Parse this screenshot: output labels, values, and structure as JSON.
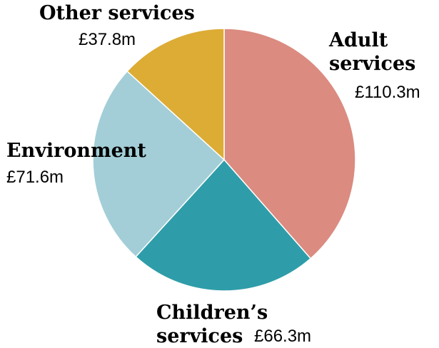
{
  "chart_data": {
    "type": "pie",
    "unit": "£m",
    "slices": [
      {
        "name": "Adult services",
        "label_lines": [
          "Adult",
          "services"
        ],
        "value": 110.3,
        "value_label": "£110.3m",
        "color": "#db8b80"
      },
      {
        "name": "Children’s services",
        "label_lines": [
          "Children’s",
          "services"
        ],
        "value": 66.3,
        "value_label": "£66.3m",
        "color": "#2e9da9"
      },
      {
        "name": "Environment",
        "label_lines": [
          "Environment"
        ],
        "value": 71.6,
        "value_label": "£71.6m",
        "color": "#a3ced7"
      },
      {
        "name": "Other services",
        "label_lines": [
          "Other services"
        ],
        "value": 37.8,
        "value_label": "£37.8m",
        "color": "#dcac35"
      }
    ],
    "start_angle": "12 o'clock",
    "direction": "clockwise",
    "legend": "none",
    "slice_border_color": "#ffffff"
  }
}
